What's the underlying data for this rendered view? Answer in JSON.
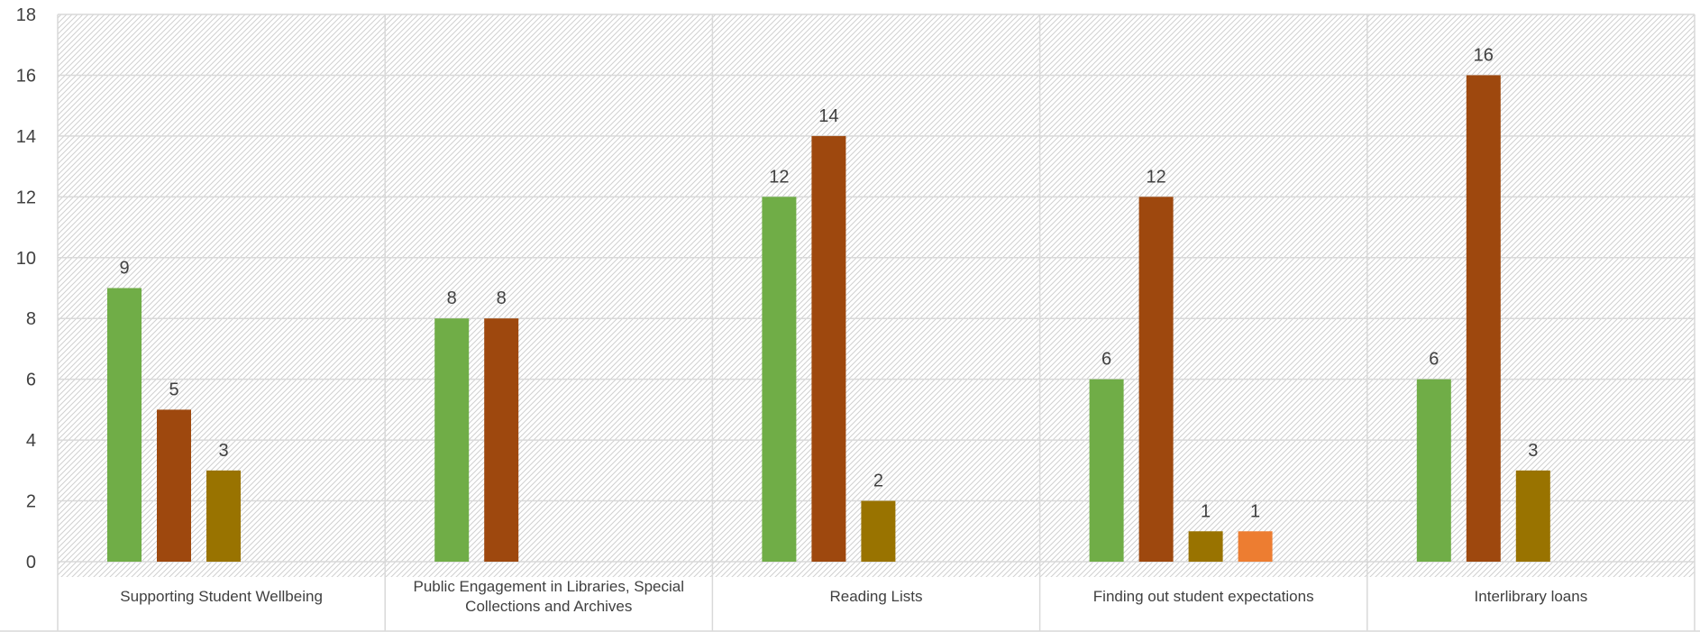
{
  "chart_data": {
    "type": "bar",
    "title": "",
    "xlabel": "",
    "ylabel": "",
    "ylim": [
      0,
      18
    ],
    "yticks": [
      0,
      2,
      4,
      6,
      8,
      10,
      12,
      14,
      16,
      18
    ],
    "grid": true,
    "categories": [
      "Supporting Student Wellbeing",
      "Public Engagement in Libraries, Special Collections and Archives",
      "Reading Lists",
      "Finding out student expectations",
      "Interlibrary loans"
    ],
    "series": [
      {
        "color": "#70ad47",
        "values": [
          9,
          8,
          12,
          6,
          6
        ]
      },
      {
        "color": "#9e480e",
        "values": [
          5,
          8,
          14,
          12,
          16
        ]
      },
      {
        "color": "#997300",
        "values": [
          3,
          null,
          2,
          1,
          3
        ]
      },
      {
        "color": "#ed7d31",
        "values": [
          null,
          null,
          null,
          1,
          null
        ]
      }
    ]
  }
}
